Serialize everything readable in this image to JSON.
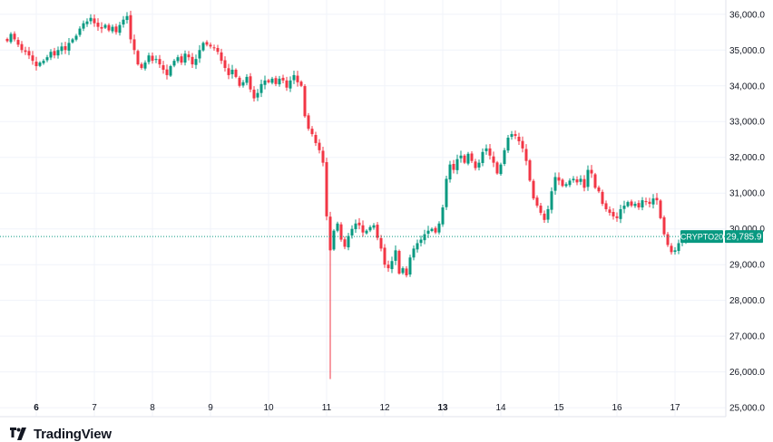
{
  "chart_data": {
    "type": "candlestick",
    "symbol": "CRYPTO20",
    "last_price_label": "29,785.9",
    "last_price": 29785.9,
    "ylim": [
      24750,
      36400
    ],
    "y_ticks": [
      "25,000.0",
      "26,000.0",
      "27,000.0",
      "28,000.0",
      "29,000.0",
      "30,000.0",
      "31,000.0",
      "32,000.0",
      "33,000.0",
      "34,000.0",
      "35,000.0",
      "36,000.0"
    ],
    "y_tick_values": [
      25000,
      26000,
      27000,
      28000,
      29000,
      30000,
      31000,
      32000,
      33000,
      34000,
      35000,
      36000
    ],
    "x_ticks": [
      {
        "label": "6",
        "index": 8,
        "bold": true
      },
      {
        "label": "7",
        "index": 24,
        "bold": false
      },
      {
        "label": "8",
        "index": 40,
        "bold": false
      },
      {
        "label": "9",
        "index": 56,
        "bold": false
      },
      {
        "label": "10",
        "index": 72,
        "bold": false
      },
      {
        "label": "11",
        "index": 88,
        "bold": false
      },
      {
        "label": "12",
        "index": 104,
        "bold": false
      },
      {
        "label": "13",
        "index": 120,
        "bold": true
      },
      {
        "label": "14",
        "index": 136,
        "bold": false
      },
      {
        "label": "15",
        "index": 152,
        "bold": false
      },
      {
        "label": "16",
        "index": 168,
        "bold": false
      },
      {
        "label": "17",
        "index": 184,
        "bold": false
      }
    ],
    "up_color": "#089981",
    "down_color": "#f23645",
    "last_price_color": "#089981",
    "closes": [
      35250,
      35450,
      35300,
      35150,
      35000,
      34950,
      34850,
      34700,
      34550,
      34650,
      34700,
      34800,
      34950,
      34850,
      35000,
      35100,
      35000,
      35200,
      35300,
      35400,
      35600,
      35750,
      35800,
      35900,
      35750,
      35650,
      35600,
      35700,
      35550,
      35650,
      35500,
      35700,
      35850,
      35950,
      35300,
      35000,
      34600,
      34500,
      34650,
      34850,
      34700,
      34750,
      34600,
      34450,
      34300,
      34550,
      34700,
      34800,
      34650,
      34900,
      34800,
      34600,
      34750,
      35000,
      35200,
      35150,
      35100,
      35050,
      34950,
      34700,
      34500,
      34300,
      34450,
      34250,
      34000,
      34100,
      34250,
      33900,
      33650,
      33800,
      34050,
      34150,
      34100,
      34200,
      34050,
      34200,
      34150,
      33950,
      34150,
      34300,
      34100,
      34000,
      33150,
      32800,
      32650,
      32400,
      32200,
      31850,
      30350,
      29400,
      29950,
      30150,
      29700,
      29500,
      29800,
      30000,
      30150,
      30100,
      29900,
      29950,
      30050,
      30100,
      29750,
      29450,
      29000,
      28900,
      29100,
      29400,
      28750,
      28900,
      28700,
      29200,
      29450,
      29600,
      29700,
      29850,
      29950,
      30000,
      29900,
      30150,
      30600,
      31400,
      31800,
      31650,
      31950,
      32050,
      31850,
      32100,
      31900,
      31700,
      31850,
      32150,
      32250,
      32050,
      31850,
      31550,
      31800,
      32200,
      32550,
      32650,
      32600,
      32450,
      32250,
      31900,
      31350,
      30850,
      30650,
      30450,
      30250,
      30550,
      31050,
      31450,
      31350,
      31200,
      31250,
      31350,
      31400,
      31300,
      31400,
      31150,
      31650,
      31550,
      31150,
      31050,
      30700,
      30550,
      30450,
      30350,
      30300,
      30550,
      30650,
      30750,
      30650,
      30700,
      30600,
      30800,
      30750,
      30700,
      30850,
      30800,
      30300,
      29850,
      29550,
      29350,
      29400,
      29600,
      29700,
      29785.9
    ],
    "lows": {
      "89": 25800,
      "108": 28720
    }
  }
}
